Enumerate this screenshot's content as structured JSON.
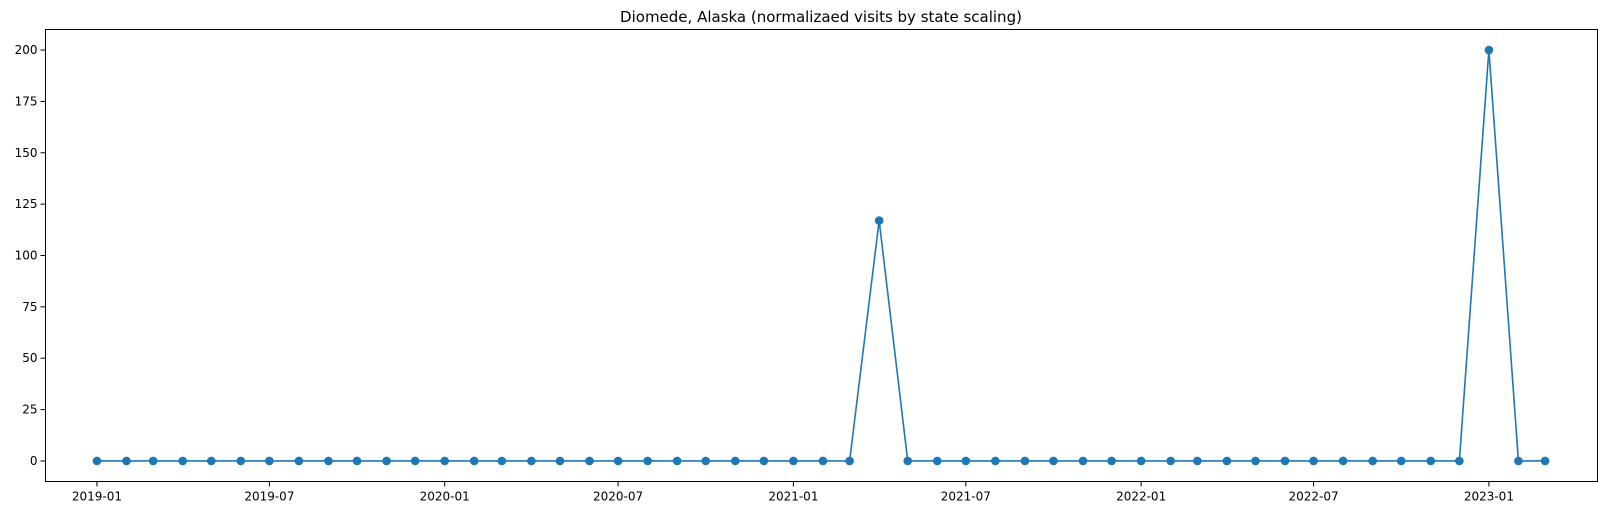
{
  "chart_data": {
    "type": "line",
    "title": "Diomede, Alaska (normalizaed visits by state scaling)",
    "xlabel": "",
    "ylabel": "",
    "x_tick_labels": [
      "2019-01",
      "2019-07",
      "2020-01",
      "2020-07",
      "2021-01",
      "2021-07",
      "2022-01",
      "2022-07",
      "2023-01"
    ],
    "y_tick_labels": [
      "0",
      "25",
      "50",
      "75",
      "100",
      "125",
      "150",
      "175",
      "200"
    ],
    "xlim": [
      "2018-11-08",
      "2023-04-25"
    ],
    "ylim": [
      -10,
      210
    ],
    "grid": false,
    "legend": false,
    "marker": "circle",
    "color": "#1f77b4",
    "series": [
      {
        "x": [
          "2019-01-01",
          "2019-02-01",
          "2019-03-01",
          "2019-04-01",
          "2019-05-01",
          "2019-06-01",
          "2019-07-01",
          "2019-08-01",
          "2019-09-01",
          "2019-10-01",
          "2019-11-01",
          "2019-12-01",
          "2020-01-01",
          "2020-02-01",
          "2020-03-01",
          "2020-04-01",
          "2020-05-01",
          "2020-06-01",
          "2020-07-01",
          "2020-08-01",
          "2020-09-01",
          "2020-10-01",
          "2020-11-01",
          "2020-12-01",
          "2021-01-01",
          "2021-02-01",
          "2021-03-01",
          "2021-04-01",
          "2021-05-01",
          "2021-06-01",
          "2021-07-01",
          "2021-08-01",
          "2021-09-01",
          "2021-10-01",
          "2021-11-01",
          "2021-12-01",
          "2022-01-01",
          "2022-02-01",
          "2022-03-01",
          "2022-04-01",
          "2022-05-01",
          "2022-06-01",
          "2022-07-01",
          "2022-08-01",
          "2022-09-01",
          "2022-10-01",
          "2022-11-01",
          "2022-12-01",
          "2023-01-01",
          "2023-02-01",
          "2023-03-01"
        ],
        "values": [
          0,
          0,
          0,
          0,
          0,
          0,
          0,
          0,
          0,
          0,
          0,
          0,
          0,
          0,
          0,
          0,
          0,
          0,
          0,
          0,
          0,
          0,
          0,
          0,
          0,
          0,
          0,
          117,
          0,
          0,
          0,
          0,
          0,
          0,
          0,
          0,
          0,
          0,
          0,
          0,
          0,
          0,
          0,
          0,
          0,
          0,
          0,
          0,
          200,
          0,
          0
        ]
      }
    ]
  }
}
